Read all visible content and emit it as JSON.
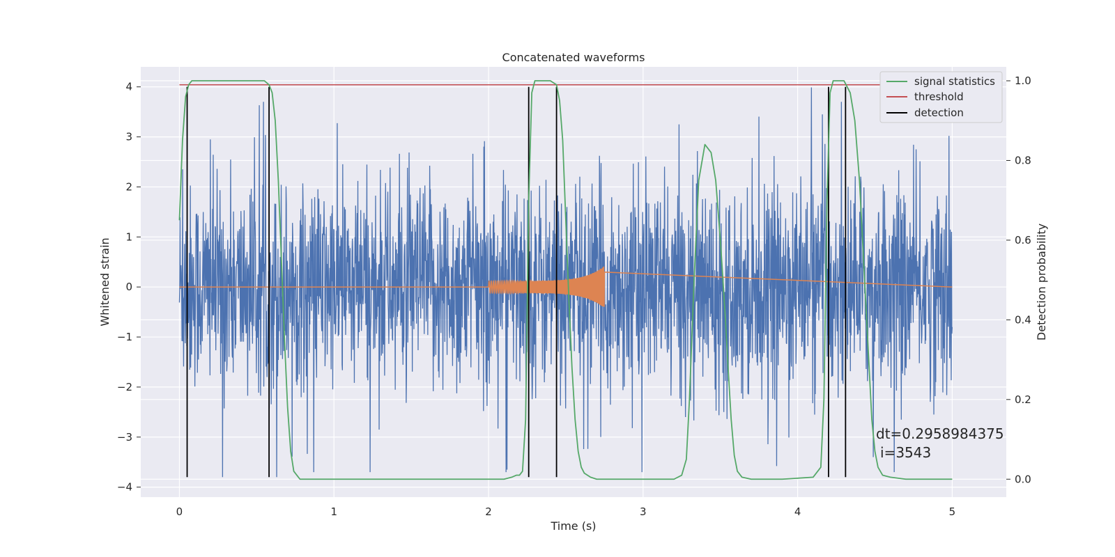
{
  "chart_data": {
    "type": "line",
    "title": "Concatenated waveforms",
    "xlabel": "Time (s)",
    "ylabel": "Whitened strain",
    "y2label": "Detection probability",
    "xlim": [
      -0.25,
      5.35
    ],
    "ylim": [
      -4.2,
      4.4
    ],
    "y2lim": [
      -0.045,
      1.035
    ],
    "xticks": [
      0,
      1,
      2,
      3,
      4,
      5
    ],
    "yticks": [
      -4,
      -3,
      -2,
      -1,
      0,
      1,
      2,
      3,
      4
    ],
    "y2ticks": [
      0.0,
      0.2,
      0.4,
      0.6,
      0.8,
      1.0
    ],
    "xtick_labels": [
      "0",
      "1",
      "2",
      "3",
      "4",
      "5"
    ],
    "ytick_labels": [
      "−4",
      "−3",
      "−2",
      "−1",
      "0",
      "1",
      "2",
      "3",
      "4"
    ],
    "y2tick_labels": [
      "0.0",
      "0.2",
      "0.4",
      "0.6",
      "0.8",
      "1.0"
    ],
    "grid": true,
    "legend_position": "top-right",
    "series": [
      {
        "name": "signal statistics",
        "axis": "right",
        "color": "#55a868",
        "x": [
          0.0,
          0.02,
          0.04,
          0.06,
          0.08,
          0.1,
          0.15,
          0.2,
          0.3,
          0.4,
          0.5,
          0.55,
          0.58,
          0.6,
          0.62,
          0.64,
          0.66,
          0.68,
          0.7,
          0.72,
          0.74,
          0.76,
          0.78,
          0.8,
          0.85,
          1.0,
          1.3,
          1.6,
          2.0,
          2.1,
          2.15,
          2.18,
          2.2,
          2.22,
          2.24,
          2.26,
          2.28,
          2.3,
          2.35,
          2.4,
          2.44,
          2.46,
          2.48,
          2.5,
          2.52,
          2.54,
          2.56,
          2.58,
          2.6,
          2.62,
          2.64,
          2.66,
          2.7,
          2.8,
          3.0,
          3.2,
          3.25,
          3.28,
          3.3,
          3.33,
          3.36,
          3.4,
          3.44,
          3.47,
          3.5,
          3.53,
          3.55,
          3.57,
          3.59,
          3.61,
          3.64,
          3.7,
          3.9,
          4.1,
          4.15,
          4.17,
          4.19,
          4.21,
          4.23,
          4.26,
          4.3,
          4.34,
          4.37,
          4.4,
          4.42,
          4.44,
          4.46,
          4.48,
          4.5,
          4.52,
          4.55,
          4.6,
          4.7,
          4.8,
          4.9,
          5.0
        ],
        "values": [
          0.65,
          0.85,
          0.96,
          0.99,
          1.0,
          1.0,
          1.0,
          1.0,
          1.0,
          1.0,
          1.0,
          1.0,
          0.99,
          0.97,
          0.9,
          0.75,
          0.55,
          0.35,
          0.18,
          0.07,
          0.02,
          0.01,
          0.0,
          0.0,
          0.0,
          0.0,
          0.0,
          0.0,
          0.0,
          0.0,
          0.005,
          0.01,
          0.01,
          0.02,
          0.15,
          0.7,
          0.97,
          1.0,
          1.0,
          1.0,
          0.99,
          0.95,
          0.85,
          0.65,
          0.45,
          0.28,
          0.15,
          0.07,
          0.03,
          0.015,
          0.01,
          0.005,
          0.0,
          0.0,
          0.0,
          0.0,
          0.01,
          0.05,
          0.2,
          0.5,
          0.75,
          0.84,
          0.82,
          0.75,
          0.6,
          0.42,
          0.28,
          0.15,
          0.06,
          0.02,
          0.005,
          0.0,
          0.0,
          0.005,
          0.03,
          0.2,
          0.7,
          0.97,
          1.0,
          1.0,
          1.0,
          0.97,
          0.9,
          0.75,
          0.6,
          0.45,
          0.3,
          0.15,
          0.07,
          0.03,
          0.01,
          0.005,
          0.0,
          0.0,
          0.0,
          0.0
        ]
      },
      {
        "name": "threshold",
        "axis": "right",
        "color": "#c44e52",
        "x": [
          0.0,
          5.0
        ],
        "values": [
          0.99,
          0.99
        ]
      },
      {
        "name": "detection",
        "axis": "left",
        "color": "#000000",
        "type": "vlines",
        "x": [
          0.05,
          0.58,
          2.26,
          2.44,
          4.2,
          4.31
        ],
        "y_range": [
          -3.8,
          4.0
        ]
      },
      {
        "axis": "left",
        "color": "#4c72b0",
        "type": "noise",
        "x_range": [
          0.0,
          5.0
        ],
        "typical_amplitude": 1.0,
        "spikes": [
          [
            0.02,
            2.35
          ],
          [
            0.2,
            2.95
          ],
          [
            0.28,
            -3.8
          ],
          [
            0.63,
            -3.8
          ],
          [
            2.12,
            -3.65
          ],
          [
            4.09,
            3.99
          ],
          [
            4.16,
            3.45
          ],
          [
            4.98,
            3.02
          ]
        ]
      },
      {
        "axis": "left",
        "color": "#dd8452",
        "type": "chirp",
        "x_range": [
          2.0,
          2.75
        ],
        "amplitude": [
          0.12,
          0.42
        ]
      }
    ],
    "annotation": {
      "line1": "dt=0.2958984375",
      "line2": "i=3543"
    }
  }
}
